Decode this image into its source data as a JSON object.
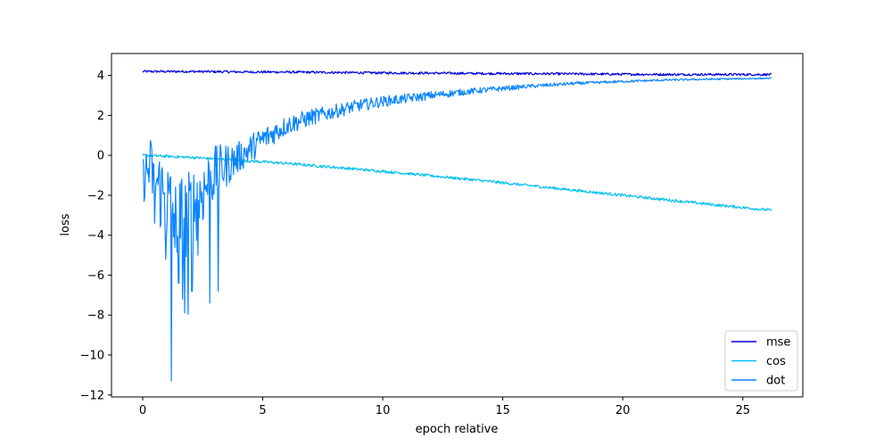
{
  "chart_data": {
    "type": "line",
    "xlabel": "epoch relative",
    "ylabel": "loss",
    "xlim": [
      -1.3,
      27.5
    ],
    "ylim": [
      -12.1,
      5.1
    ],
    "xticks": [
      0,
      5,
      10,
      15,
      20,
      25
    ],
    "yticks": [
      4,
      2,
      0,
      -2,
      -4,
      -6,
      -8,
      -10,
      -12
    ],
    "xtick_labels": [
      "0",
      "5",
      "10",
      "15",
      "20",
      "25"
    ],
    "ytick_labels": [
      "4",
      "2",
      "0",
      "−2",
      "−4",
      "−6",
      "−8",
      "−10",
      "−12"
    ],
    "grid": false,
    "legend_position": "lower-right",
    "series": [
      {
        "name": "mse",
        "color": "#0000dd",
        "x": [
          0,
          2,
          4,
          6,
          8,
          10,
          12,
          14,
          16,
          18,
          20,
          22,
          24,
          26.2
        ],
        "y": [
          4.2,
          4.2,
          4.18,
          4.17,
          4.15,
          4.13,
          4.12,
          4.1,
          4.09,
          4.08,
          4.06,
          4.05,
          4.05,
          4.05
        ],
        "noise": 0.06
      },
      {
        "name": "cos",
        "color": "#00c0f0",
        "x": [
          0,
          2,
          4,
          6,
          8,
          10,
          12,
          14,
          16,
          18,
          20,
          22,
          24,
          26.2
        ],
        "y": [
          0.0,
          -0.1,
          -0.25,
          -0.4,
          -0.6,
          -0.8,
          -1.02,
          -1.25,
          -1.5,
          -1.75,
          -2.0,
          -2.25,
          -2.5,
          -2.75
        ],
        "noise": 0.07
      },
      {
        "name": "dot",
        "color": "#0a84ff",
        "x": [
          0,
          0.3,
          0.6,
          1.0,
          1.4,
          1.8,
          2.2,
          2.6,
          3.0,
          3.5,
          4.0,
          5.0,
          6.0,
          7.0,
          8.0,
          9.0,
          10.0,
          12.0,
          14.0,
          16.0,
          18.0,
          20.0,
          22.0,
          24.0,
          26.2
        ],
        "y": [
          -1.2,
          -0.6,
          -1.4,
          -2.4,
          -3.0,
          -3.2,
          -2.4,
          -1.6,
          -0.9,
          -0.5,
          -0.1,
          0.8,
          1.5,
          1.9,
          2.2,
          2.5,
          2.7,
          3.0,
          3.25,
          3.45,
          3.6,
          3.7,
          3.78,
          3.82,
          3.86
        ],
        "noise_profile": [
          [
            0,
            1.2
          ],
          [
            1.0,
            2.4
          ],
          [
            2.0,
            2.2
          ],
          [
            3.0,
            1.4
          ],
          [
            4.0,
            0.8
          ],
          [
            6.0,
            0.5
          ],
          [
            8.0,
            0.35
          ],
          [
            12.0,
            0.2
          ],
          [
            16.0,
            0.1
          ],
          [
            20.0,
            0.06
          ],
          [
            26.2,
            0.03
          ]
        ],
        "spikes": [
          {
            "x": 1.2,
            "y": -11.3
          },
          {
            "x": 0.95,
            "y": -5.2
          },
          {
            "x": 1.5,
            "y": -6.4
          },
          {
            "x": 1.75,
            "y": -7.9
          },
          {
            "x": 1.9,
            "y": -7.95
          },
          {
            "x": 1.65,
            "y": -7.2
          },
          {
            "x": 2.05,
            "y": -6.8
          },
          {
            "x": 2.3,
            "y": -5.0
          },
          {
            "x": 2.8,
            "y": -7.4
          },
          {
            "x": 3.15,
            "y": -6.8
          },
          {
            "x": 0.5,
            "y": -3.4
          },
          {
            "x": 1.35,
            "y": -4.6
          }
        ]
      }
    ]
  }
}
